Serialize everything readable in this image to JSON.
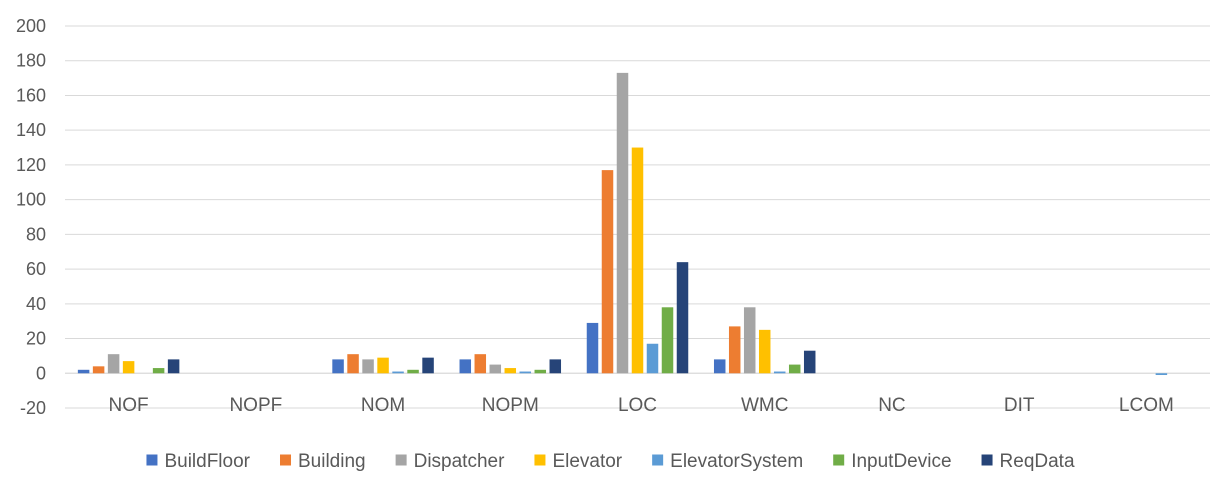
{
  "chart_data": {
    "type": "bar",
    "title": "",
    "xlabel": "",
    "ylabel": "",
    "ylim": [
      -20,
      200
    ],
    "yticks": [
      -20,
      0,
      20,
      40,
      60,
      80,
      100,
      120,
      140,
      160,
      180,
      200
    ],
    "grid": true,
    "legend_position": "bottom",
    "categories": [
      "NOF",
      "NOPF",
      "NOM",
      "NOPM",
      "LOC",
      "WMC",
      "NC",
      "DIT",
      "LCOM"
    ],
    "series": [
      {
        "name": "BuildFloor",
        "color": "#4472c4",
        "values": [
          2,
          0,
          8,
          8,
          29,
          8,
          0,
          0,
          0
        ]
      },
      {
        "name": "Building",
        "color": "#ed7d31",
        "values": [
          4,
          0,
          11,
          11,
          117,
          27,
          0,
          0,
          0
        ]
      },
      {
        "name": "Dispatcher",
        "color": "#a5a5a5",
        "values": [
          11,
          0,
          8,
          5,
          173,
          38,
          0,
          0,
          0
        ]
      },
      {
        "name": "Elevator",
        "color": "#ffc000",
        "values": [
          7,
          0,
          9,
          3,
          130,
          25,
          0,
          0,
          0
        ]
      },
      {
        "name": "ElevatorSystem",
        "color": "#5b9bd5",
        "values": [
          0,
          0,
          1,
          1,
          17,
          1,
          0,
          0,
          -1
        ]
      },
      {
        "name": "InputDevice",
        "color": "#70ad47",
        "values": [
          3,
          0,
          2,
          2,
          38,
          5,
          0,
          0,
          0
        ]
      },
      {
        "name": "ReqData",
        "color": "#264478",
        "values": [
          8,
          0,
          9,
          8,
          64,
          13,
          0,
          0,
          0
        ]
      }
    ]
  }
}
